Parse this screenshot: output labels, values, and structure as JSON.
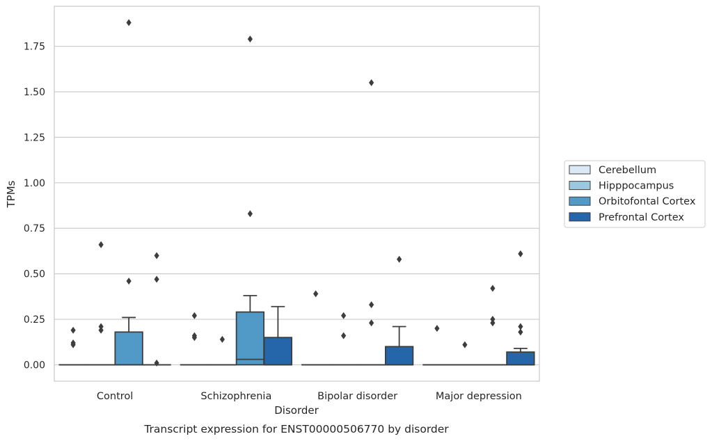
{
  "chart_data": {
    "type": "box",
    "caption": "Transcript expression for ENST00000506770 by disorder",
    "xlabel": "Disorder",
    "ylabel": "TPMs",
    "ylim": [
      -0.09,
      1.97
    ],
    "yticks": [
      "0.00",
      "0.25",
      "0.50",
      "0.75",
      "1.00",
      "1.25",
      "1.50",
      "1.75"
    ],
    "grid": true,
    "legend_position": "right",
    "categories": [
      "Control",
      "Schizophrenia",
      "Bipolar disorder",
      "Major depression"
    ],
    "series": [
      {
        "name": "Cerebellum",
        "color": "#dbe9f6",
        "boxes": [
          {
            "q1": 0,
            "median": 0,
            "q3": 0,
            "whisker_low": 0,
            "whisker_high": 0,
            "outliers": [
              0.12,
              0.11,
              0.19
            ]
          },
          {
            "q1": 0,
            "median": 0,
            "q3": 0,
            "whisker_low": 0,
            "whisker_high": 0,
            "outliers": [
              0.27,
              0.16,
              0.15
            ]
          },
          {
            "q1": 0,
            "median": 0,
            "q3": 0,
            "whisker_low": 0,
            "whisker_high": 0,
            "outliers": [
              0.39
            ]
          },
          {
            "q1": 0,
            "median": 0,
            "q3": 0,
            "whisker_low": 0,
            "whisker_high": 0,
            "outliers": [
              0.2
            ]
          }
        ]
      },
      {
        "name": "Hipppocampus",
        "color": "#9ac8e0",
        "boxes": [
          {
            "q1": 0,
            "median": 0,
            "q3": 0,
            "whisker_low": 0,
            "whisker_high": 0,
            "outliers": [
              0.66,
              0.21,
              0.19
            ]
          },
          {
            "q1": 0,
            "median": 0,
            "q3": 0,
            "whisker_low": 0,
            "whisker_high": 0,
            "outliers": [
              0.14
            ]
          },
          {
            "q1": 0,
            "median": 0,
            "q3": 0,
            "whisker_low": 0,
            "whisker_high": 0,
            "outliers": [
              0.27,
              0.16
            ]
          },
          {
            "q1": 0,
            "median": 0,
            "q3": 0,
            "whisker_low": 0,
            "whisker_high": 0,
            "outliers": [
              0.11
            ]
          }
        ]
      },
      {
        "name": "Orbitofontal Cortex",
        "color": "#5199c7",
        "boxes": [
          {
            "q1": 0,
            "median": 0,
            "q3": 0.18,
            "whisker_low": 0,
            "whisker_high": 0.26,
            "outliers": [
              1.88,
              0.46
            ]
          },
          {
            "q1": 0,
            "median": 0.03,
            "q3": 0.29,
            "whisker_low": 0,
            "whisker_high": 0.38,
            "outliers": [
              1.79,
              0.83
            ]
          },
          {
            "q1": 0,
            "median": 0,
            "q3": 0,
            "whisker_low": 0,
            "whisker_high": 0,
            "outliers": [
              1.55,
              0.33,
              0.23
            ]
          },
          {
            "q1": 0,
            "median": 0,
            "q3": 0,
            "whisker_low": 0,
            "whisker_high": 0,
            "outliers": [
              0.42,
              0.25,
              0.23
            ]
          }
        ]
      },
      {
        "name": "Prefrontal Cortex",
        "color": "#2565a9",
        "boxes": [
          {
            "q1": 0,
            "median": 0,
            "q3": 0,
            "whisker_low": 0,
            "whisker_high": 0,
            "outliers": [
              0.6,
              0.47,
              0.01
            ]
          },
          {
            "q1": 0,
            "median": 0,
            "q3": 0.15,
            "whisker_low": 0,
            "whisker_high": 0.32,
            "outliers": []
          },
          {
            "q1": 0,
            "median": 0,
            "q3": 0.1,
            "whisker_low": 0,
            "whisker_high": 0.21,
            "outliers": [
              0.58
            ]
          },
          {
            "q1": 0,
            "median": 0,
            "q3": 0.07,
            "whisker_low": 0,
            "whisker_high": 0.09,
            "outliers": [
              0.61,
              0.21,
              0.18
            ]
          }
        ]
      }
    ]
  }
}
